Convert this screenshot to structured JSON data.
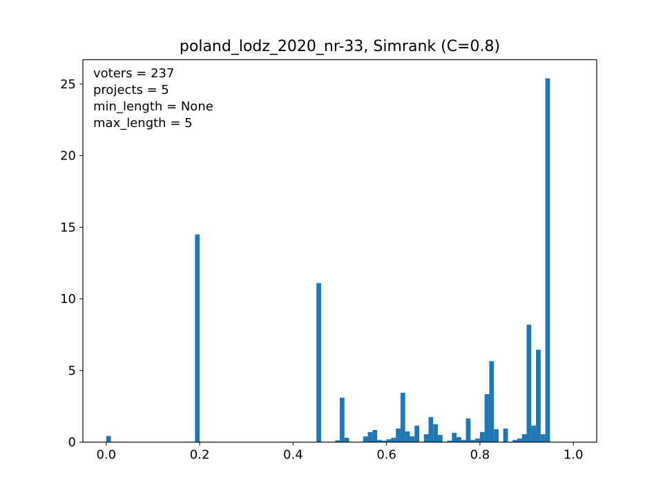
{
  "chart_data": {
    "type": "bar",
    "subtype": "histogram",
    "title": "poland_lodz_2020_nr-33, Simrank (C=0.8)",
    "xlabel": "",
    "ylabel": "",
    "xlim": [
      -0.05,
      1.05
    ],
    "ylim": [
      0,
      26.7
    ],
    "xticks": [
      0.0,
      0.2,
      0.4,
      0.6,
      0.8,
      1.0
    ],
    "xtick_labels": [
      "0.0",
      "0.2",
      "0.4",
      "0.6",
      "0.8",
      "1.0"
    ],
    "yticks": [
      0,
      5,
      10,
      15,
      20,
      25
    ],
    "ytick_labels": [
      "0",
      "5",
      "10",
      "15",
      "20",
      "25"
    ],
    "grid": false,
    "legend": "none",
    "bar_color": "#1f77b4",
    "bin_width": 0.01,
    "annotation_lines": [
      "voters = 237",
      "projects = 5",
      "min_length = None",
      "max_length = 5"
    ],
    "bins_left": [
      0.0,
      0.19,
      0.45,
      0.49,
      0.5,
      0.51,
      0.55,
      0.56,
      0.57,
      0.58,
      0.59,
      0.6,
      0.61,
      0.62,
      0.63,
      0.64,
      0.65,
      0.66,
      0.68,
      0.69,
      0.7,
      0.71,
      0.73,
      0.74,
      0.75,
      0.76,
      0.77,
      0.78,
      0.79,
      0.8,
      0.81,
      0.82,
      0.83,
      0.85,
      0.87,
      0.88,
      0.89,
      0.9,
      0.91,
      0.92,
      0.93,
      0.94
    ],
    "values": [
      0.43,
      14.5,
      11.1,
      0.12,
      3.1,
      0.3,
      0.4,
      0.7,
      0.85,
      0.15,
      0.1,
      0.2,
      0.3,
      0.95,
      3.45,
      0.75,
      0.4,
      1.15,
      0.55,
      1.75,
      1.25,
      0.5,
      0.1,
      0.65,
      0.35,
      0.15,
      1.65,
      0.15,
      0.25,
      0.7,
      3.35,
      5.65,
      0.9,
      0.95,
      0.15,
      0.25,
      0.55,
      8.2,
      1.15,
      6.45,
      0.55,
      25.4
    ]
  }
}
